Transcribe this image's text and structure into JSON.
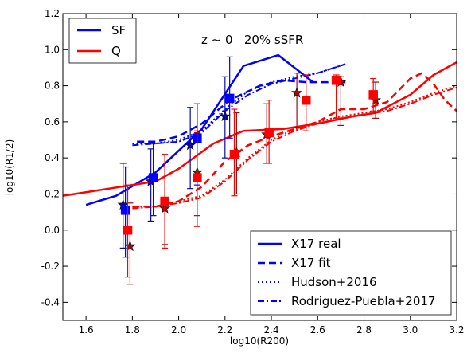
{
  "chart_data": {
    "type": "line",
    "annotation": "z ~ 0   20% sSFR",
    "xlabel": "log10(R200)",
    "ylabel": "log10(R1/2)",
    "xlim": [
      1.5,
      3.2
    ],
    "ylim": [
      -0.5,
      1.2
    ],
    "xticks": [
      "1.6",
      "1.8",
      "2.0",
      "2.2",
      "2.4",
      "2.6",
      "2.8",
      "3.0",
      "3.2"
    ],
    "yticks": [
      "-0.4",
      "-0.2",
      "0.0",
      "0.2",
      "0.4",
      "0.6",
      "0.8",
      "1.0",
      "1.2"
    ],
    "grid": false,
    "colors": {
      "SF": "#0000ff",
      "Q": "#ff0000",
      "star_SF": "#0a0aa8",
      "star_Q": "#9b0d0d"
    },
    "color_legend": {
      "placement": "top-left",
      "entries": [
        {
          "label": "SF",
          "color": "#0000ff"
        },
        {
          "label": "Q",
          "color": "#ff0000"
        }
      ]
    },
    "style_legend": {
      "placement": "bottom-right",
      "entries": [
        {
          "label": "X17 real",
          "style": "solid"
        },
        {
          "label": "X17 fit",
          "style": "dashed"
        },
        {
          "label": "Hudson+2016",
          "style": "dotted"
        },
        {
          "label": "Rodriguez-Puebla+2017",
          "style": "dashdot"
        }
      ]
    },
    "series": [
      {
        "group": "SF",
        "style": "solid",
        "x": [
          1.6,
          1.73,
          1.9,
          2.1,
          2.28,
          2.43,
          2.58
        ],
        "y": [
          0.14,
          0.19,
          0.32,
          0.56,
          0.91,
          0.97,
          0.82
        ]
      },
      {
        "group": "SF",
        "style": "dashed",
        "x": [
          1.82,
          1.9,
          2.0,
          2.1,
          2.22,
          2.35,
          2.45,
          2.55,
          2.65,
          2.72
        ],
        "y": [
          0.49,
          0.49,
          0.52,
          0.59,
          0.72,
          0.8,
          0.83,
          0.82,
          0.82,
          0.82
        ]
      },
      {
        "group": "SF",
        "style": "dotted",
        "x": [
          1.8,
          1.9,
          2.0,
          2.1,
          2.2,
          2.3,
          2.4,
          2.5,
          2.6,
          2.72
        ],
        "y": [
          0.48,
          0.48,
          0.5,
          0.55,
          0.67,
          0.77,
          0.82,
          0.85,
          0.87,
          0.92
        ]
      },
      {
        "group": "SF",
        "style": "dashdot",
        "x": [
          1.8,
          1.9,
          2.0,
          2.1,
          2.2,
          2.3,
          2.4,
          2.5,
          2.6,
          2.72
        ],
        "y": [
          0.47,
          0.48,
          0.49,
          0.54,
          0.66,
          0.75,
          0.81,
          0.84,
          0.87,
          0.92
        ]
      },
      {
        "group": "Q",
        "style": "solid",
        "x": [
          1.5,
          1.55,
          1.7,
          1.9,
          2.0,
          2.15,
          2.28,
          2.45,
          2.6,
          2.75,
          2.85,
          3.0,
          3.1,
          3.2
        ],
        "y": [
          0.19,
          0.2,
          0.23,
          0.27,
          0.34,
          0.48,
          0.55,
          0.56,
          0.59,
          0.63,
          0.65,
          0.75,
          0.86,
          0.93
        ]
      },
      {
        "group": "Q",
        "style": "dashed",
        "x": [
          1.8,
          1.9,
          2.0,
          2.1,
          2.2,
          2.3,
          2.4,
          2.5,
          2.6,
          2.7,
          2.8,
          2.9,
          3.0,
          3.05,
          3.1,
          3.15,
          3.2
        ],
        "y": [
          0.13,
          0.13,
          0.16,
          0.24,
          0.38,
          0.47,
          0.52,
          0.56,
          0.6,
          0.67,
          0.67,
          0.71,
          0.84,
          0.87,
          0.81,
          0.72,
          0.66
        ]
      },
      {
        "group": "Q",
        "style": "dotted",
        "x": [
          1.8,
          1.9,
          2.0,
          2.1,
          2.2,
          2.3,
          2.4,
          2.5,
          2.6,
          2.7,
          2.8,
          2.9,
          3.0,
          3.1,
          3.2
        ],
        "y": [
          0.13,
          0.13,
          0.16,
          0.19,
          0.28,
          0.4,
          0.5,
          0.56,
          0.6,
          0.63,
          0.65,
          0.67,
          0.71,
          0.76,
          0.8
        ]
      },
      {
        "group": "Q",
        "style": "dashdot",
        "x": [
          1.8,
          1.9,
          2.0,
          2.1,
          2.2,
          2.3,
          2.4,
          2.5,
          2.6,
          2.7,
          2.8,
          2.9,
          3.0,
          3.1,
          3.2
        ],
        "y": [
          0.12,
          0.13,
          0.15,
          0.18,
          0.27,
          0.39,
          0.49,
          0.55,
          0.59,
          0.62,
          0.64,
          0.66,
          0.7,
          0.75,
          0.79
        ]
      }
    ],
    "squares": [
      {
        "group": "SF",
        "points": [
          {
            "x": 1.77,
            "y": 0.11,
            "lo": -0.15,
            "hi": 0.35
          },
          {
            "x": 1.89,
            "y": 0.29,
            "lo": 0.08,
            "hi": 0.48
          },
          {
            "x": 2.08,
            "y": 0.51,
            "lo": 0.25,
            "hi": 0.7
          },
          {
            "x": 2.22,
            "y": 0.73,
            "lo": 0.51,
            "hi": 0.96
          }
        ]
      },
      {
        "group": "Q",
        "points": [
          {
            "x": 1.78,
            "y": 0.0,
            "lo": -0.26,
            "hi": 0.25
          },
          {
            "x": 1.94,
            "y": 0.16,
            "lo": -0.1,
            "hi": 0.42
          },
          {
            "x": 2.08,
            "y": 0.29,
            "lo": 0.02,
            "hi": 0.55
          },
          {
            "x": 2.24,
            "y": 0.42,
            "lo": 0.19,
            "hi": 0.67
          },
          {
            "x": 2.39,
            "y": 0.54,
            "lo": 0.37,
            "hi": 0.72
          },
          {
            "x": 2.55,
            "y": 0.72,
            "lo": 0.55,
            "hi": 0.86
          },
          {
            "x": 2.68,
            "y": 0.83,
            "lo": 0.62,
            "hi": 0.86
          },
          {
            "x": 2.84,
            "y": 0.75,
            "lo": 0.66,
            "hi": 0.84
          }
        ]
      }
    ],
    "stars": [
      {
        "group": "SF",
        "points": [
          {
            "x": 1.76,
            "y": 0.14,
            "lo": -0.1,
            "hi": 0.37
          },
          {
            "x": 1.88,
            "y": 0.27,
            "lo": 0.05,
            "hi": 0.45
          },
          {
            "x": 2.05,
            "y": 0.47,
            "lo": 0.23,
            "hi": 0.68
          },
          {
            "x": 2.2,
            "y": 0.63,
            "lo": 0.4,
            "hi": 0.85
          }
        ]
      },
      {
        "group": "Q",
        "points": [
          {
            "x": 1.79,
            "y": -0.09,
            "lo": -0.3,
            "hi": 0.15
          },
          {
            "x": 1.94,
            "y": 0.12,
            "lo": -0.08,
            "hi": 0.35
          },
          {
            "x": 2.08,
            "y": 0.32,
            "lo": 0.08,
            "hi": 0.54
          },
          {
            "x": 2.25,
            "y": 0.43,
            "lo": 0.2,
            "hi": 0.65
          },
          {
            "x": 2.38,
            "y": 0.53,
            "lo": 0.37,
            "hi": 0.7
          },
          {
            "x": 2.51,
            "y": 0.76,
            "lo": 0.57,
            "hi": 0.87
          },
          {
            "x": 2.7,
            "y": 0.82,
            "lo": 0.58,
            "hi": 0.85
          },
          {
            "x": 2.85,
            "y": 0.72,
            "lo": 0.62,
            "hi": 0.82
          }
        ]
      }
    ]
  }
}
